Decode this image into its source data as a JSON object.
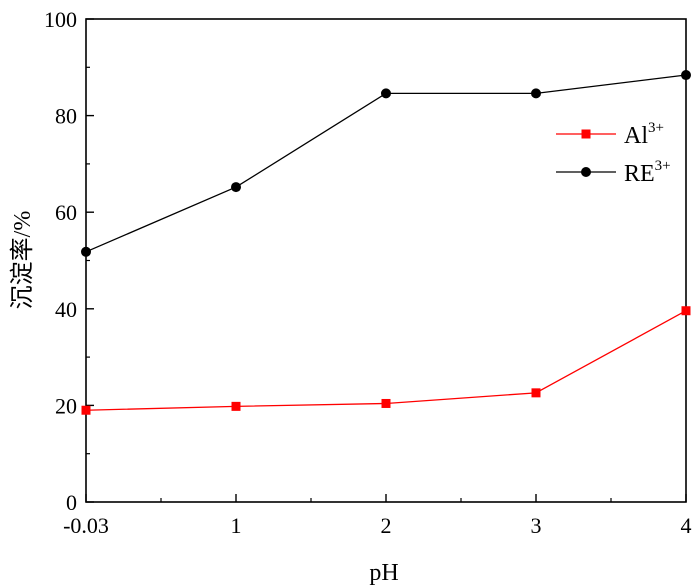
{
  "chart_data": {
    "type": "line",
    "categories": [
      "-0.03",
      "1",
      "2",
      "3",
      "4"
    ],
    "series": [
      {
        "name": "Al",
        "name_sup": "3+",
        "color": "#ff0000",
        "marker": "square",
        "values": [
          19.0,
          19.8,
          20.4,
          22.6,
          39.6
        ]
      },
      {
        "name": "RE",
        "name_sup": "3+",
        "color": "#000000",
        "marker": "circle",
        "values": [
          51.8,
          65.2,
          84.6,
          84.6,
          88.4
        ]
      }
    ],
    "xlabel": "pH",
    "ylabel": "沉淀率/%",
    "ylim": [
      0,
      100
    ],
    "yticks": [
      "0",
      "20",
      "40",
      "60",
      "80",
      "100"
    ],
    "grid": false,
    "legend_position": "right"
  }
}
